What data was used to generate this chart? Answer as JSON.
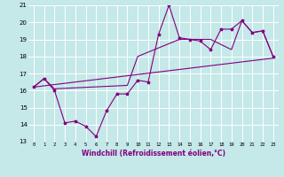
{
  "xlabel": "Windchill (Refroidissement éolien,°C)",
  "xlim": [
    -0.5,
    23.5
  ],
  "ylim": [
    13,
    21
  ],
  "xticks": [
    0,
    1,
    2,
    3,
    4,
    5,
    6,
    7,
    8,
    9,
    10,
    11,
    12,
    13,
    14,
    15,
    16,
    17,
    18,
    19,
    20,
    21,
    22,
    23
  ],
  "yticks": [
    13,
    14,
    15,
    16,
    17,
    18,
    19,
    20,
    21
  ],
  "background_color": "#c5e8e8",
  "grid_color": "#ffffff",
  "line_color": "#800080",
  "line1_x": [
    0,
    1,
    2,
    3,
    4,
    5,
    6,
    7,
    8,
    9,
    10,
    11,
    12,
    13,
    14,
    15,
    16,
    17,
    18,
    19,
    20,
    21,
    22,
    23
  ],
  "line1_y": [
    16.2,
    16.7,
    16.0,
    14.1,
    14.2,
    13.9,
    13.3,
    14.8,
    15.8,
    15.8,
    16.6,
    16.5,
    19.3,
    21.0,
    19.1,
    19.0,
    18.9,
    18.4,
    19.6,
    19.6,
    20.1,
    19.4,
    19.5,
    18.0
  ],
  "line2_x": [
    0,
    23
  ],
  "line2_y": [
    16.2,
    17.9
  ],
  "line3_x": [
    0,
    1,
    2,
    9,
    10,
    14,
    17,
    19,
    20,
    21,
    22,
    23
  ],
  "line3_y": [
    16.2,
    16.7,
    16.1,
    16.3,
    18.0,
    19.0,
    19.0,
    18.4,
    20.1,
    19.4,
    19.5,
    18.0
  ]
}
